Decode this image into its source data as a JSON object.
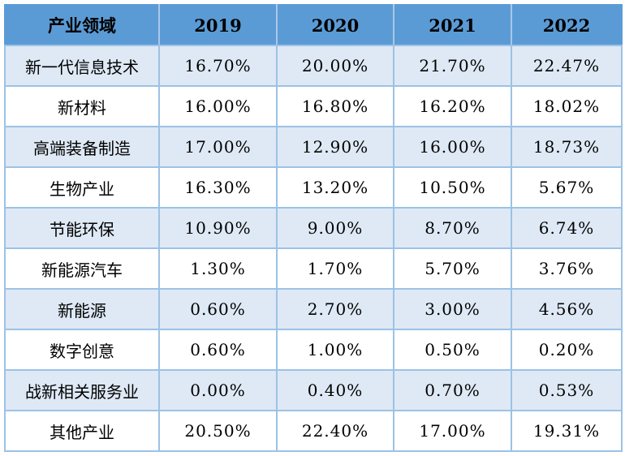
{
  "colors": {
    "header_bg": "#5B9BD5",
    "alt_row_bg": "#DEE9F5",
    "row_bg": "#FFFFFF",
    "grid_border": "#9CC2E5",
    "text": "#000000"
  },
  "table": {
    "columns": [
      "产业领域",
      "2019",
      "2020",
      "2021",
      "2022"
    ],
    "rows": [
      {
        "industry": "新一代信息技术",
        "values": [
          "16.70%",
          "20.00%",
          "21.70%",
          "22.47%"
        ]
      },
      {
        "industry": "新材料",
        "values": [
          "16.00%",
          "16.80%",
          "16.20%",
          "18.02%"
        ]
      },
      {
        "industry": "高端装备制造",
        "values": [
          "17.00%",
          "12.90%",
          "16.00%",
          "18.73%"
        ]
      },
      {
        "industry": "生物产业",
        "values": [
          "16.30%",
          "13.20%",
          "10.50%",
          "5.67%"
        ]
      },
      {
        "industry": "节能环保",
        "values": [
          "10.90%",
          "9.00%",
          "8.70%",
          "6.74%"
        ]
      },
      {
        "industry": "新能源汽车",
        "values": [
          "1.30%",
          "1.70%",
          "5.70%",
          "3.76%"
        ]
      },
      {
        "industry": "新能源",
        "values": [
          "0.60%",
          "2.70%",
          "3.00%",
          "4.56%"
        ]
      },
      {
        "industry": "数字创意",
        "values": [
          "0.60%",
          "1.00%",
          "0.50%",
          "0.20%"
        ]
      },
      {
        "industry": "战新相关服务业",
        "values": [
          "0.00%",
          "0.40%",
          "0.70%",
          "0.53%"
        ]
      },
      {
        "industry": "其他产业",
        "values": [
          "20.50%",
          "22.40%",
          "17.00%",
          "19.31%"
        ]
      }
    ]
  },
  "chart_data": {
    "type": "table",
    "title": "",
    "xlabel": "产业领域",
    "unit": "percent",
    "categories": [
      "2019",
      "2020",
      "2021",
      "2022"
    ],
    "series": [
      {
        "name": "新一代信息技术",
        "values": [
          16.7,
          20.0,
          21.7,
          22.47
        ]
      },
      {
        "name": "新材料",
        "values": [
          16.0,
          16.8,
          16.2,
          18.02
        ]
      },
      {
        "name": "高端装备制造",
        "values": [
          17.0,
          12.9,
          16.0,
          18.73
        ]
      },
      {
        "name": "生物产业",
        "values": [
          16.3,
          13.2,
          10.5,
          5.67
        ]
      },
      {
        "name": "节能环保",
        "values": [
          10.9,
          9.0,
          8.7,
          6.74
        ]
      },
      {
        "name": "新能源汽车",
        "values": [
          1.3,
          1.7,
          5.7,
          3.76
        ]
      },
      {
        "name": "新能源",
        "values": [
          0.6,
          2.7,
          3.0,
          4.56
        ]
      },
      {
        "name": "数字创意",
        "values": [
          0.6,
          1.0,
          0.5,
          0.2
        ]
      },
      {
        "name": "战新相关服务业",
        "values": [
          0.0,
          0.4,
          0.7,
          0.53
        ]
      },
      {
        "name": "其他产业",
        "values": [
          20.5,
          22.4,
          17.0,
          19.31
        ]
      }
    ]
  }
}
